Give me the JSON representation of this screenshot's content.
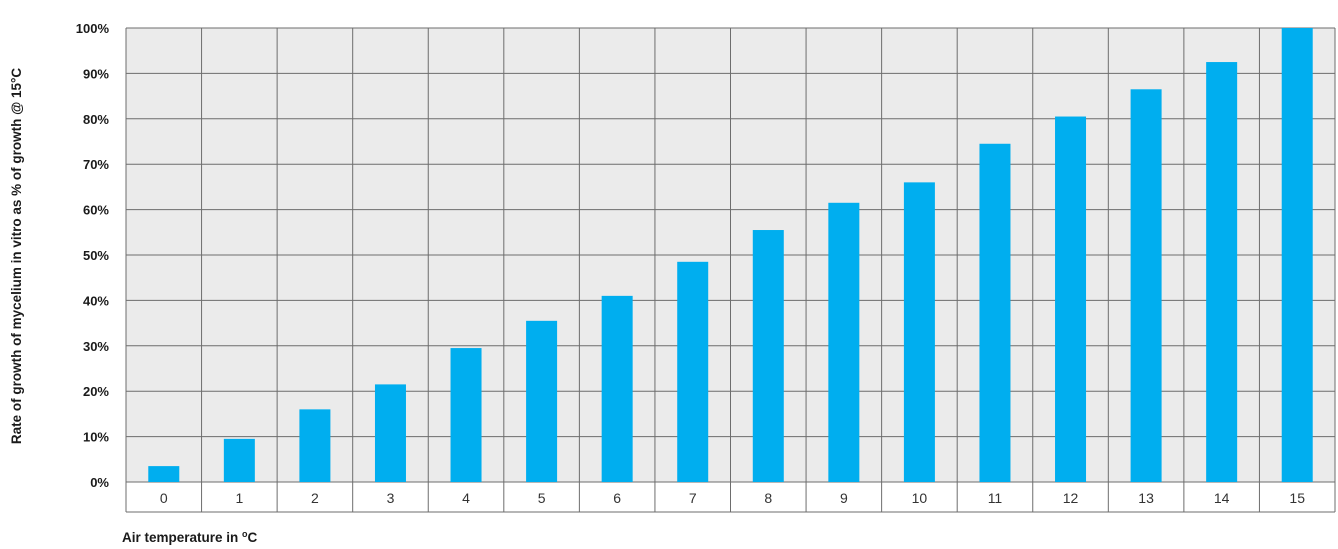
{
  "chart_data": {
    "type": "bar",
    "title": "",
    "xlabel": "Air temperature in",
    "xlabel_superscript": "o",
    "xlabel_unit": "C",
    "ylabel": "Rate of growth of mycelium in vitro as % of growth @ 15°C",
    "ylim": [
      0,
      100
    ],
    "yticks": [
      "0%",
      "10%",
      "20%",
      "30%",
      "40%",
      "50%",
      "60%",
      "70%",
      "80%",
      "90%",
      "100%"
    ],
    "categories": [
      "0",
      "1",
      "2",
      "3",
      "4",
      "5",
      "6",
      "7",
      "8",
      "9",
      "10",
      "11",
      "12",
      "13",
      "14",
      "15"
    ],
    "values": [
      3.5,
      9.5,
      16,
      21.5,
      29.5,
      35.5,
      41,
      48.5,
      55.5,
      61.5,
      66,
      74.5,
      80.5,
      86.5,
      92.5,
      100
    ],
    "grid": true,
    "legend": "none",
    "colors": {
      "bar": "#00aeef",
      "plot_background": "#ebebeb",
      "grid": "#6d6d6d"
    }
  }
}
